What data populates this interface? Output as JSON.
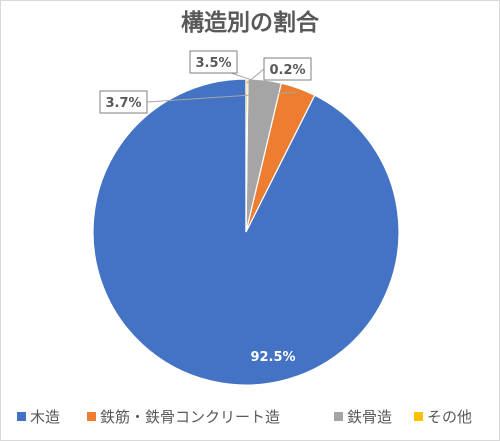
{
  "chart_data": {
    "type": "pie",
    "title": "構造別の割合",
    "categories": [
      "木造",
      "鉄筋・鉄骨コンクリート造",
      "鉄骨造",
      "その他"
    ],
    "values": [
      92.5,
      3.7,
      3.5,
      0.2
    ],
    "labels": [
      "92.5%",
      "3.7%",
      "3.5%",
      "0.2%"
    ],
    "colors": [
      "#4472C4",
      "#ED7D31",
      "#A5A5A5",
      "#FFC000"
    ],
    "legend_position": "bottom"
  }
}
